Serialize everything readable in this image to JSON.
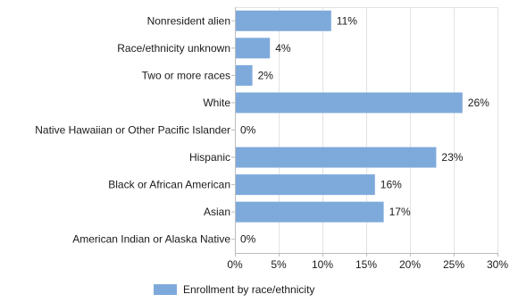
{
  "chart_data": {
    "type": "bar",
    "orientation": "horizontal",
    "categories": [
      "Nonresident alien",
      "Race/ethnicity unknown",
      "Two or more races",
      "White",
      "Native Hawaiian or Other Pacific Islander",
      "Hispanic",
      "Black or African American",
      "Asian",
      "American Indian or Alaska Native"
    ],
    "series": [
      {
        "name": "Enrollment by race/ethnicity",
        "values": [
          11,
          4,
          2,
          26,
          0,
          23,
          16,
          17,
          0
        ],
        "value_labels": [
          "11%",
          "4%",
          "2%",
          "26%",
          "0%",
          "23%",
          "16%",
          "17%",
          "0%"
        ],
        "color": "#7eaadb"
      }
    ],
    "xlim": [
      0,
      30
    ],
    "x_ticks": [
      0,
      5,
      10,
      15,
      20,
      25,
      30
    ],
    "x_tick_labels": [
      "0%",
      "5%",
      "10%",
      "15%",
      "20%",
      "25%",
      "30%"
    ],
    "grid": true,
    "gridline_color": "#e3e3e3",
    "legend_position": "bottom"
  }
}
